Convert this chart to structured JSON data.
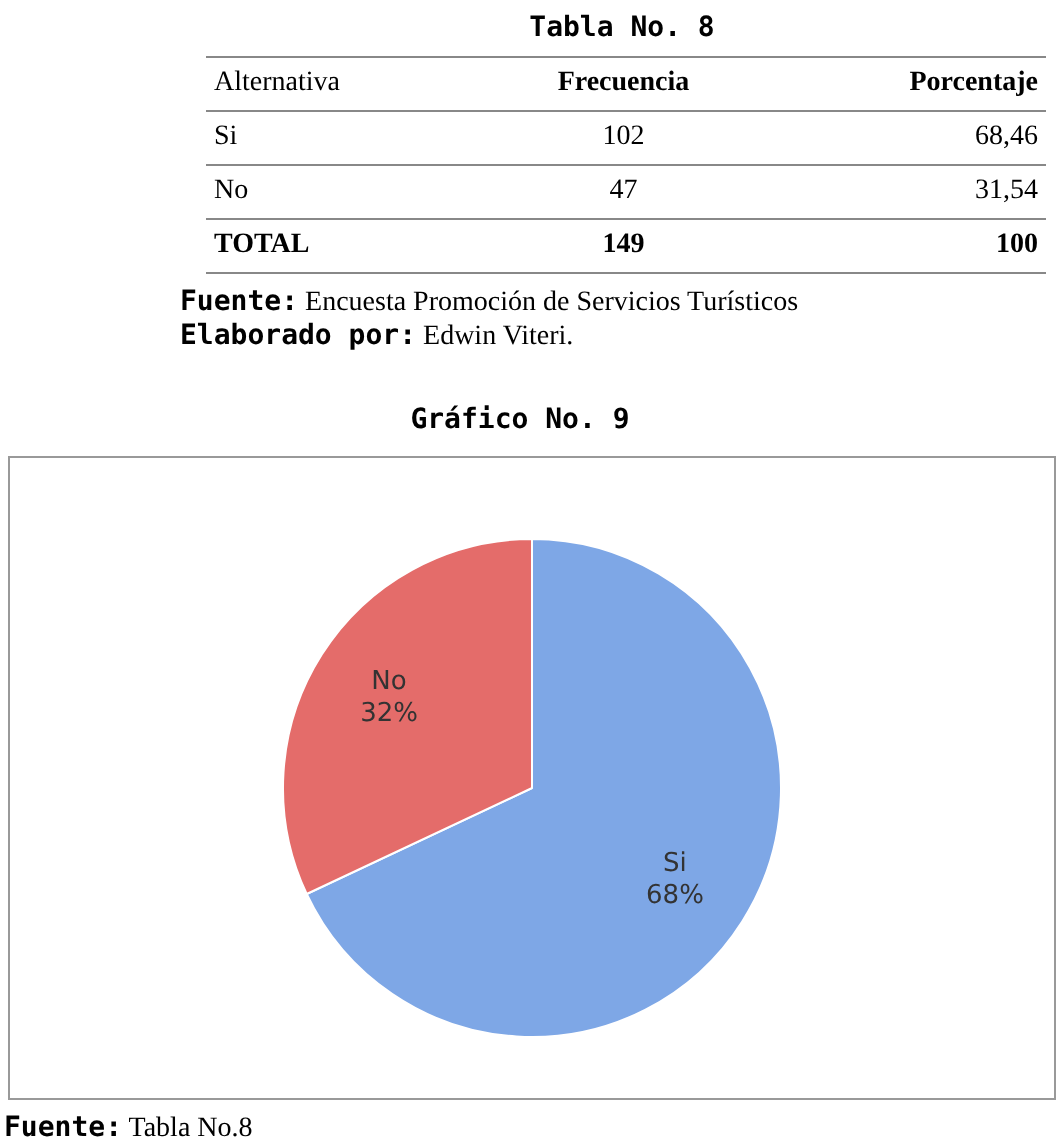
{
  "chart_data": [
    {
      "type": "other",
      "title": "Tabla No. 8",
      "annotations": [
        "Alternativa\tFrecuencia\tPorcentaje",
        "Si\t102\t68,46",
        "No\t47\t31,54",
        "TOTAL\t149\t100",
        "Fuente: Encuesta Promoción de Servicios Turísticos",
        "Elaborado por: Edwin Viteri."
      ]
    },
    {
      "type": "pie",
      "title": "Gráfico No. 9",
      "categories": [
        "Si",
        "No"
      ],
      "values": [
        68,
        32
      ],
      "colors": [
        "#7ea7e6",
        "#e46c6a"
      ],
      "value_labels": [
        "68%",
        "32%"
      ],
      "legend": false,
      "annotations": [
        "Fuente: Tabla No.8"
      ]
    }
  ]
}
